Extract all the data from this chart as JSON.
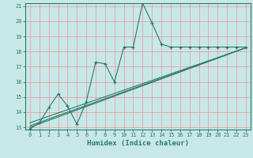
{
  "xlabel": "Humidex (Indice chaleur)",
  "bg_color": "#c8e8e8",
  "grid_color": "#e8a0a0",
  "line_color": "#2a7a6a",
  "spine_color": "#2a7a6a",
  "tick_color": "#2a7a6a",
  "xlim": [
    -0.5,
    23.5
  ],
  "ylim": [
    12.85,
    21.2
  ],
  "x_ticks": [
    0,
    1,
    2,
    3,
    4,
    5,
    6,
    7,
    8,
    9,
    10,
    11,
    12,
    13,
    14,
    15,
    16,
    17,
    18,
    19,
    20,
    21,
    22,
    23
  ],
  "y_ticks": [
    13,
    14,
    15,
    16,
    17,
    18,
    19,
    20,
    21
  ],
  "series1_x": [
    0,
    1,
    2,
    3,
    4,
    5,
    6,
    7,
    8,
    9,
    10,
    11,
    12,
    13,
    14,
    15,
    16,
    17,
    18,
    19,
    20,
    21,
    22,
    23
  ],
  "series1_y": [
    12.9,
    13.3,
    14.3,
    15.2,
    14.4,
    13.2,
    14.7,
    17.3,
    17.2,
    16.0,
    18.3,
    18.3,
    21.2,
    19.9,
    18.5,
    18.3,
    18.3,
    18.3,
    18.3,
    18.3,
    18.3,
    18.3,
    18.3,
    18.3
  ],
  "line1_x": [
    0,
    23
  ],
  "line1_y": [
    13.0,
    18.25
  ],
  "line2_x": [
    0,
    23
  ],
  "line2_y": [
    13.1,
    18.25
  ],
  "line3_x": [
    0,
    23
  ],
  "line3_y": [
    13.3,
    18.25
  ],
  "label_fontsize": 5.5,
  "xlabel_fontsize": 6.5,
  "tick_fontsize": 5.0
}
